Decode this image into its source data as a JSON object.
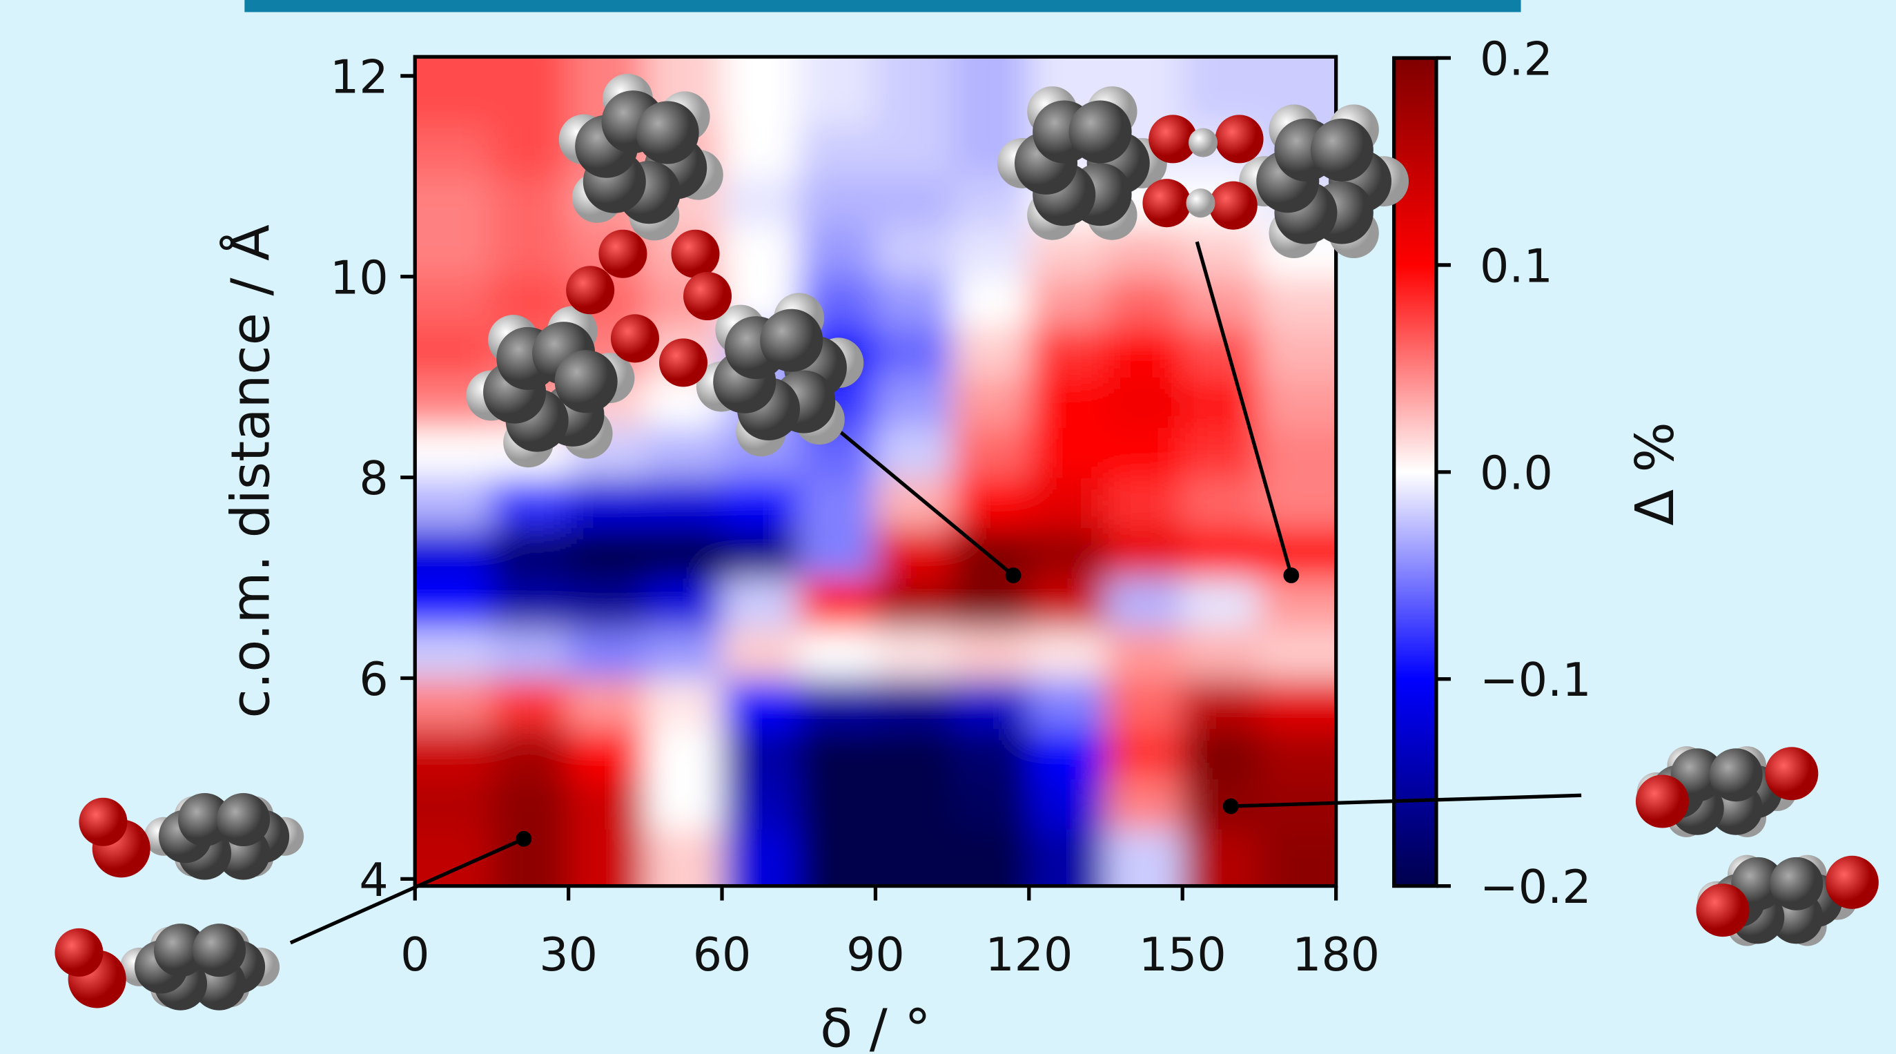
{
  "chart_data": {
    "type": "heatmap",
    "xlabel": "δ / °",
    "ylabel": "c.o.m. distance / Å",
    "colorbar_label": "Δ %",
    "x": [
      7.5,
      22.5,
      37.5,
      52.5,
      67.5,
      82.5,
      97.5,
      112.5,
      127.5,
      142.5,
      157.5,
      172.5
    ],
    "y": [
      4.25,
      4.75,
      5.25,
      5.75,
      6.25,
      6.75,
      7.25,
      7.75,
      8.25,
      8.75,
      9.25,
      9.75,
      10.25,
      10.75,
      11.25,
      11.75
    ],
    "z": [
      [
        0.15,
        0.19,
        0.14,
        0.02,
        -0.12,
        -0.2,
        -0.2,
        -0.2,
        -0.15,
        -0.02,
        0.16,
        0.19
      ],
      [
        0.16,
        0.19,
        0.14,
        0.0,
        -0.14,
        -0.2,
        -0.2,
        -0.19,
        -0.12,
        0.05,
        0.19,
        0.18
      ],
      [
        0.14,
        0.17,
        0.1,
        0.0,
        -0.15,
        -0.2,
        -0.2,
        -0.18,
        -0.1,
        0.08,
        0.2,
        0.17
      ],
      [
        0.05,
        0.08,
        0.04,
        0.01,
        -0.1,
        -0.15,
        -0.16,
        -0.13,
        -0.05,
        0.06,
        0.15,
        0.12
      ],
      [
        -0.02,
        -0.03,
        -0.05,
        -0.04,
        0.02,
        0.0,
        0.01,
        0.02,
        0.01,
        0.04,
        0.03,
        0.02
      ],
      [
        -0.1,
        -0.15,
        -0.16,
        -0.12,
        -0.02,
        0.1,
        0.17,
        0.2,
        0.14,
        -0.03,
        -0.01,
        0.04
      ],
      [
        -0.12,
        -0.18,
        -0.2,
        -0.2,
        -0.17,
        -0.05,
        0.12,
        0.2,
        0.18,
        0.12,
        0.1,
        0.1
      ],
      [
        -0.03,
        -0.08,
        -0.12,
        -0.12,
        -0.1,
        -0.05,
        0.03,
        0.1,
        0.12,
        0.08,
        0.06,
        0.05
      ],
      [
        0.0,
        0.0,
        -0.02,
        -0.03,
        -0.04,
        -0.06,
        -0.02,
        0.06,
        0.1,
        0.1,
        0.08,
        0.05
      ],
      [
        0.05,
        0.04,
        0.02,
        0.0,
        -0.03,
        -0.08,
        -0.04,
        0.04,
        0.1,
        0.11,
        0.09,
        0.04
      ],
      [
        0.07,
        0.06,
        0.05,
        0.02,
        -0.03,
        -0.1,
        -0.06,
        0.02,
        0.08,
        0.1,
        0.07,
        0.03
      ],
      [
        0.06,
        0.07,
        0.06,
        0.04,
        0.0,
        -0.06,
        -0.04,
        0.0,
        0.04,
        0.06,
        0.04,
        0.02
      ],
      [
        0.05,
        0.06,
        0.05,
        0.03,
        0.0,
        -0.04,
        -0.02,
        -0.01,
        0.02,
        0.03,
        0.02,
        0.0
      ],
      [
        0.05,
        0.06,
        0.04,
        0.02,
        -0.01,
        -0.03,
        -0.03,
        -0.02,
        0.0,
        0.0,
        0.0,
        -0.01
      ],
      [
        0.06,
        0.07,
        0.05,
        0.03,
        0.0,
        -0.02,
        -0.02,
        -0.03,
        -0.01,
        -0.01,
        -0.01,
        -0.02
      ],
      [
        0.07,
        0.07,
        0.05,
        0.02,
        0.0,
        -0.01,
        -0.02,
        -0.03,
        -0.01,
        -0.01,
        -0.02,
        -0.02
      ]
    ],
    "xlim": [
      0,
      180
    ],
    "ylim": [
      3.93,
      12.19
    ],
    "xticks": [
      0,
      30,
      60,
      90,
      120,
      150,
      180
    ],
    "yticks": [
      4,
      6,
      8,
      10,
      12
    ],
    "zlim": [
      -0.2,
      0.2
    ],
    "zticks": [
      0.2,
      0.1,
      {
        "value": 0,
        "label": "0.0"
      },
      {
        "value": -0.1,
        "label": "−0.1"
      },
      {
        "value": -0.2,
        "label": "−0.2"
      }
    ],
    "colorscale": [
      "#00004c",
      "#0000ff",
      "#ffffff",
      "#ff0000",
      "#800000"
    ]
  }
}
